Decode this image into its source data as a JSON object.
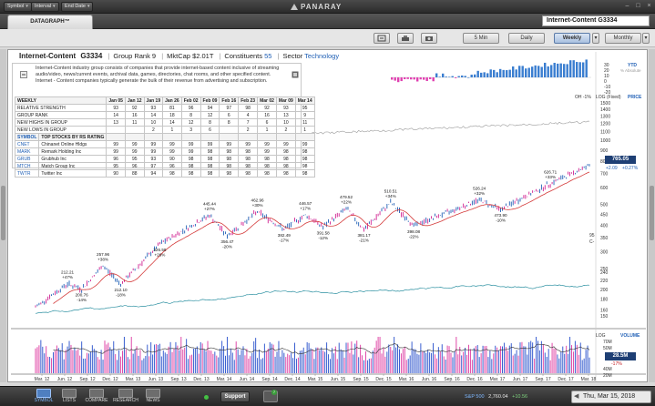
{
  "topbar": {
    "menus": [
      {
        "label": "Symbol"
      },
      {
        "label": "Interval"
      },
      {
        "label": "End Date"
      }
    ],
    "brand": "PANARAY"
  },
  "subbar": {
    "tab_label": "DATAGRAPH™",
    "symbol_value": "Internet-Content  G3334"
  },
  "toolbar": {
    "periods": [
      {
        "label": "5 Min"
      },
      {
        "label": "Daily"
      },
      {
        "label": "Weekly",
        "active": true
      },
      {
        "label": "Monthly"
      }
    ]
  },
  "header": {
    "title": "Internet-Content",
    "code": "G3334",
    "group_rank": "Group Rank 9",
    "mktcap": "MktCap $2.01T",
    "constituents_label": "Constituents",
    "constituents_value": "55",
    "sector_label": "Sector",
    "sector_value": "Technology"
  },
  "description": "Internet-Content industry group consists of companies that provide internet-based content inclusive of streaming audio/video, news/current events, archival data, games, directories, chat rooms, and other specified content. Internet - Content companies typically generate the bulk of their revenue from advertising and subscription.",
  "weekly_table": {
    "header_label": "WEEKLY",
    "dates": [
      "Jan 05",
      "Jan 12",
      "Jan 19",
      "Jan 26",
      "Feb 02",
      "Feb 09",
      "Feb 16",
      "Feb 23",
      "Mar 02",
      "Mar 09",
      "Mar 14"
    ],
    "rows": [
      {
        "label": "RELATIVE STRENGTH",
        "values": [
          "93",
          "92",
          "93",
          "81",
          "96",
          "94",
          "97",
          "98",
          "92",
          "93",
          "95"
        ]
      },
      {
        "label": "GROUP RANK",
        "values": [
          "14",
          "16",
          "14",
          "18",
          "8",
          "12",
          "6",
          "4",
          "16",
          "13",
          "9"
        ]
      },
      {
        "label": "NEW HIGHS IN GROUP",
        "values": [
          "13",
          "11",
          "10",
          "14",
          "12",
          "8",
          "8",
          "7",
          "6",
          "10",
          "11"
        ]
      },
      {
        "label": "NEW LOWS IN GROUP",
        "values": [
          "",
          "",
          "2",
          "1",
          "3",
          "6",
          "",
          "2",
          "1",
          "2",
          "1"
        ]
      }
    ],
    "stocks_header": {
      "symbol": "SYMBOL",
      "name": "TOP STOCKS BY RS RATING"
    },
    "stocks": [
      {
        "symbol": "CNET",
        "name": "Chinanet Online Hldgs",
        "values": [
          "99",
          "99",
          "99",
          "99",
          "99",
          "99",
          "99",
          "99",
          "99",
          "99",
          "99"
        ]
      },
      {
        "symbol": "MARK",
        "name": "Remark Holding Inc",
        "values": [
          "99",
          "99",
          "99",
          "99",
          "99",
          "98",
          "98",
          "98",
          "99",
          "98",
          "98"
        ]
      },
      {
        "symbol": "GRUB",
        "name": "Grubhub Inc",
        "values": [
          "96",
          "95",
          "93",
          "90",
          "98",
          "98",
          "98",
          "98",
          "98",
          "98",
          "98"
        ]
      },
      {
        "symbol": "MTCH",
        "name": "Match Group Inc",
        "values": [
          "95",
          "96",
          "97",
          "96",
          "98",
          "98",
          "98",
          "98",
          "98",
          "98",
          "98"
        ]
      },
      {
        "symbol": "TWTR",
        "name": "Twitter Inc",
        "values": [
          "90",
          "88",
          "94",
          "98",
          "98",
          "98",
          "98",
          "98",
          "98",
          "98",
          "98"
        ]
      }
    ]
  },
  "price_panel": {
    "oh_label": "OH -1%",
    "scale_label": "LOG (Fixed)",
    "price_label": "PRICE",
    "last_price": "765.05",
    "change": "+2.09",
    "change_pct": "+0.27%",
    "rs_end_label": "95",
    "rs_c_label": "C-",
    "axis_ticks": [
      1500,
      1400,
      1300,
      1200,
      1100,
      1000,
      900,
      800,
      700,
      600,
      500,
      450,
      400,
      350,
      300,
      250,
      240,
      220,
      200,
      180,
      160,
      150
    ]
  },
  "ytd_panel": {
    "ytd_label": "YTD",
    "ticks": [
      "30",
      "20",
      "10",
      "0",
      "-10",
      "-20"
    ],
    "abs_label": "% Absolute"
  },
  "annotations": [
    {
      "value": "212.21",
      "pct": "+47%"
    },
    {
      "value": "200.76",
      "pct": "-14%"
    },
    {
      "value": "257.96",
      "pct": "+38%"
    },
    {
      "value": "212.10",
      "pct": "-18%"
    },
    {
      "value": "326.58",
      "pct": "+26%"
    },
    {
      "value": "445.44",
      "pct": "+27%"
    },
    {
      "value": "356.47",
      "pct": "-20%"
    },
    {
      "value": "462.96",
      "pct": "+30%"
    },
    {
      "value": "382.49",
      "pct": "-17%"
    },
    {
      "value": "446.57",
      "pct": "+17%"
    },
    {
      "value": "391.58",
      "pct": "-12%"
    },
    {
      "value": "479.52",
      "pct": "+22%"
    },
    {
      "value": "381.17",
      "pct": "-21%"
    },
    {
      "value": "510.51",
      "pct": "+34%"
    },
    {
      "value": "398.08",
      "pct": "-22%"
    },
    {
      "value": "526.24",
      "pct": "+32%"
    },
    {
      "value": "473.90",
      "pct": "-10%"
    },
    {
      "value": "626.71",
      "pct": "+33%"
    }
  ],
  "volume_panel": {
    "scale_label": "LOG",
    "volume_label": "VOLUME",
    "ticks": [
      "70M",
      "50M",
      "40M",
      "20M"
    ],
    "last_volume": "28.5M",
    "volume_pct": "-17%"
  },
  "x_axis": [
    "Mar. 12",
    "Jun. 12",
    "Sep. 12",
    "Dec. 12",
    "Mar. 13",
    "Jun. 13",
    "Sep. 13",
    "Dec. 13",
    "Mar. 14",
    "Jun. 14",
    "Sep. 14",
    "Dec. 14",
    "Mar. 15",
    "Jun. 15",
    "Sep. 15",
    "Dec. 15",
    "Mar. 16",
    "Jun. 16",
    "Sep. 16",
    "Dec. 16",
    "Mar. 17",
    "Jun. 17",
    "Sep. 17",
    "Dec. 17",
    "Mar. 18"
  ],
  "bottom_nav": [
    {
      "label": "SYMBOL",
      "active": true
    },
    {
      "label": "LISTS"
    },
    {
      "label": "COMPARE"
    },
    {
      "label": "RESEARCH"
    },
    {
      "label": "NEWS"
    }
  ],
  "support_label": "Support",
  "notification_count": "7",
  "index_ticker": {
    "symbol": "S&P 500",
    "value": "2,760.04",
    "change": "+10.56"
  },
  "date_display": "Thu, Mar 15, 2018",
  "colors": {
    "accent": "#1e3f74",
    "up": "#1f5fb5",
    "down": "#d02090",
    "ma": "#d43a3a",
    "rs": "#2a8fa0"
  }
}
